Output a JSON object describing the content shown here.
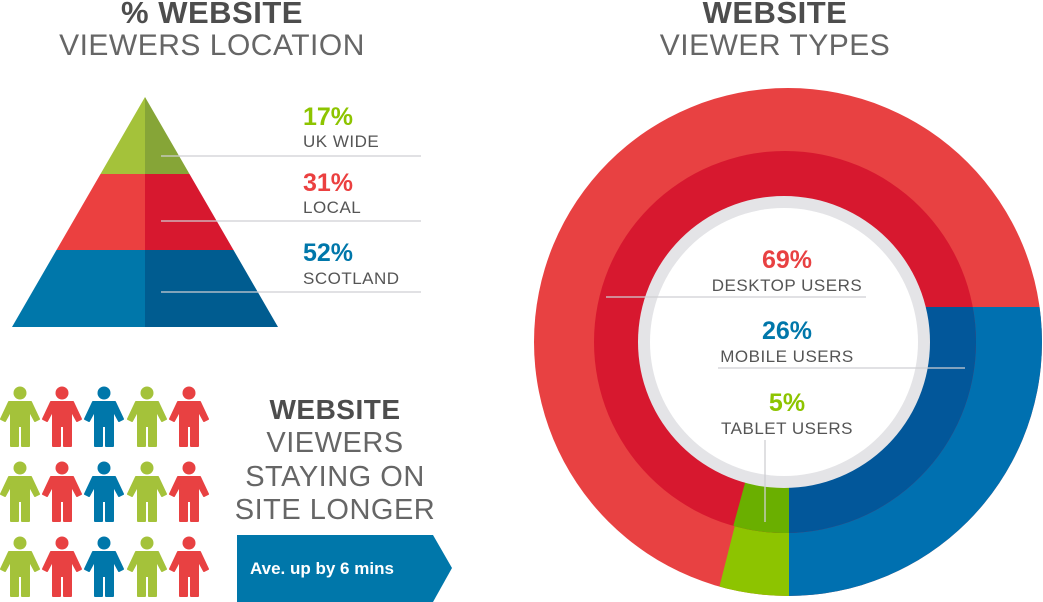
{
  "location": {
    "title_bold": "% WEBSITE",
    "title_light": "VIEWERS LOCATION"
  },
  "types": {
    "title_bold": "WEBSITE",
    "title_light": "VIEWER TYPES"
  },
  "longer": {
    "title_bold": "WEBSITE",
    "lines": [
      "VIEWERS",
      "STAYING ON",
      "SITE LONGER"
    ],
    "callout": "Ave. up by 6 mins",
    "callout_color": "#0077AA",
    "people_colors": [
      "#A4C23A",
      "#E84142",
      "#0077AA",
      "#A4C23A",
      "#E84142"
    ],
    "people_rows": 3
  },
  "chart_data": [
    {
      "type": "pyramid",
      "segments": [
        {
          "label": "UK WIDE",
          "value": 17,
          "display": "17%",
          "color": "#A4C23A",
          "shade": "#86A537"
        },
        {
          "label": "LOCAL",
          "value": 31,
          "display": "31%",
          "color": "#EB4040",
          "shade": "#D7182F"
        },
        {
          "label": "SCOTLAND",
          "value": 52,
          "display": "52%",
          "color": "#0077AA",
          "shade": "#005C90"
        }
      ]
    },
    {
      "type": "pie",
      "style": "donut",
      "segments": [
        {
          "label": "DESKTOP USERS",
          "value": 69,
          "display": "69%",
          "color": "#E84142",
          "shade": "#D7182F"
        },
        {
          "label": "MOBILE USERS",
          "value": 26,
          "display": "26%",
          "color": "#0070B0",
          "shade": "#02579A"
        },
        {
          "label": "TABLET USERS",
          "value": 5,
          "display": "5%",
          "color": "#8DC400",
          "shade": "#6AAF00"
        }
      ]
    }
  ]
}
